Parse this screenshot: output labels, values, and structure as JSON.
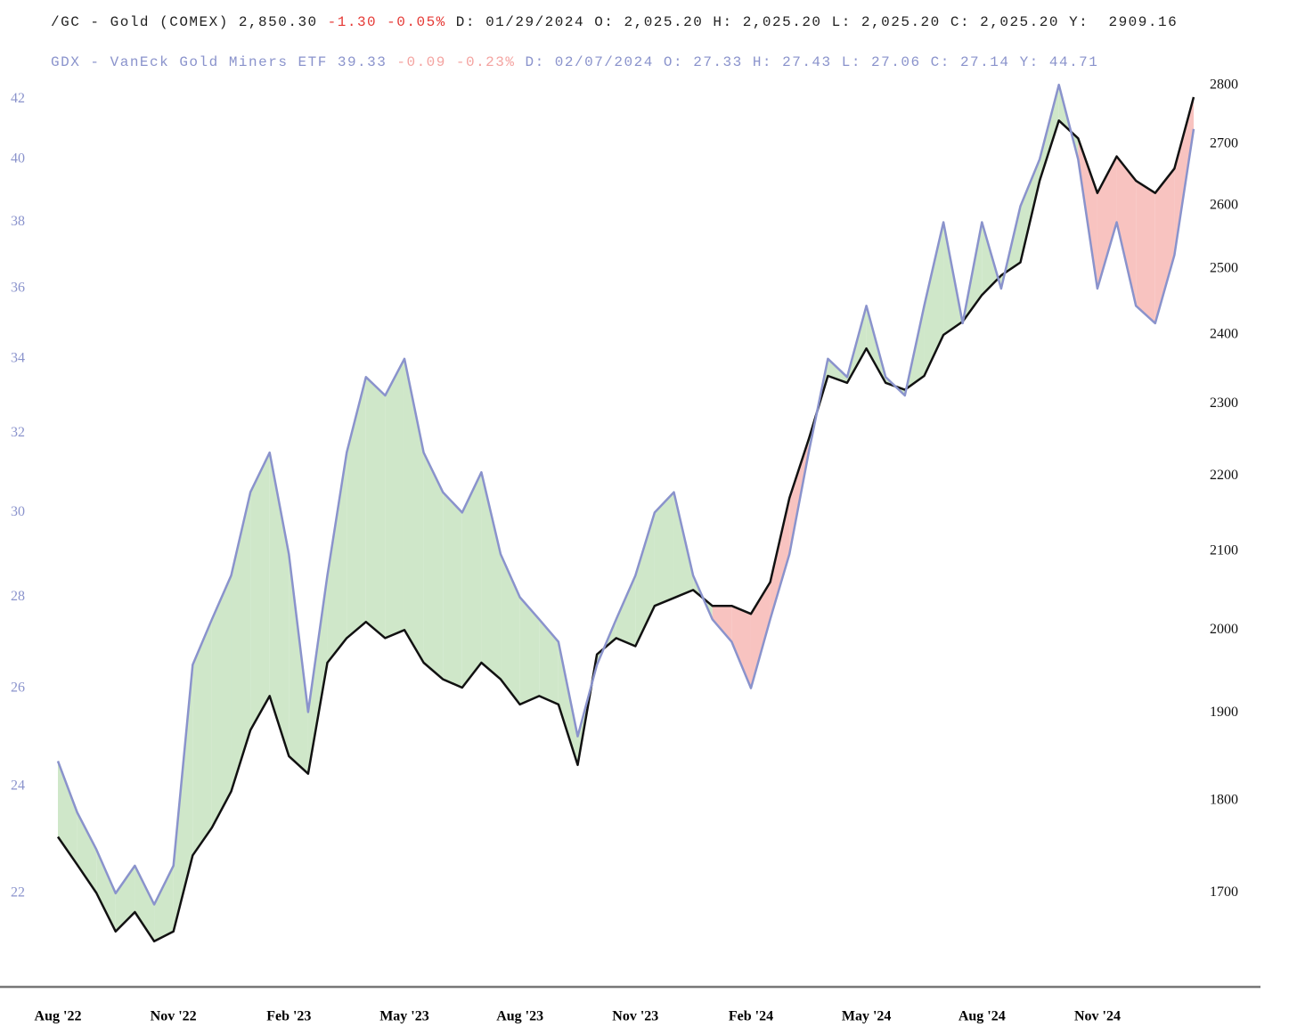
{
  "chart_data": {
    "type": "line",
    "categories": [
      "Aug '22",
      null,
      null,
      null,
      null,
      null,
      "Nov '22",
      null,
      null,
      null,
      null,
      null,
      "Feb '23",
      null,
      null,
      null,
      null,
      null,
      "May '23",
      null,
      null,
      null,
      null,
      null,
      "Aug '23",
      null,
      null,
      null,
      null,
      null,
      "Nov '23",
      null,
      null,
      null,
      null,
      null,
      "Feb '24",
      null,
      null,
      null,
      null,
      null,
      "May '24",
      null,
      null,
      null,
      null,
      null,
      "Aug '24",
      null,
      null,
      null,
      null,
      null,
      "Nov '24",
      null,
      null,
      null,
      null,
      null
    ],
    "series": [
      {
        "name": "/GC - Gold (COMEX)",
        "color": "#111111",
        "axis": "y2",
        "quote": {
          "last": "2,850.30",
          "change": "-1.30",
          "percent": "-0.05%",
          "details": "D: 01/29/2024 O: 2,025.20 H: 2,025.20 L: 2,025.20 C: 2,025.20 Y:  2909.16"
        },
        "values": [
          1760,
          1730,
          1700,
          1660,
          1680,
          1650,
          1660,
          1740,
          1770,
          1810,
          1880,
          1920,
          1850,
          1830,
          1960,
          1990,
          2010,
          1990,
          2000,
          1960,
          1940,
          1930,
          1960,
          1940,
          1910,
          1920,
          1910,
          1840,
          1970,
          1990,
          1980,
          2030,
          2040,
          2050,
          2030,
          2030,
          2020,
          2060,
          2170,
          2250,
          2340,
          2330,
          2380,
          2330,
          2320,
          2340,
          2400,
          2420,
          2460,
          2490,
          2510,
          2640,
          2740,
          2710,
          2620,
          2680,
          2640,
          2620,
          2660,
          2780
        ]
      },
      {
        "name": "GDX - VanEck Gold Miners ETF",
        "color": "#8a93cc",
        "axis": "y",
        "quote": {
          "last": "39.33",
          "change": "-0.09",
          "percent": "-0.23%",
          "details": "D: 02/07/2024 O: 27.33 H: 27.43 L: 27.06 C: 27.14 Y: 44.71"
        },
        "values": [
          24.5,
          23.5,
          22.8,
          22.0,
          22.5,
          21.8,
          22.5,
          26.5,
          27.5,
          28.5,
          30.5,
          31.5,
          29.0,
          25.5,
          28.5,
          31.5,
          33.5,
          33.0,
          34.0,
          31.5,
          30.5,
          30.0,
          31.0,
          29.0,
          28.0,
          27.5,
          27.0,
          25.0,
          26.5,
          27.5,
          28.5,
          30.0,
          30.5,
          28.5,
          27.5,
          27.0,
          26.0,
          27.5,
          29.0,
          31.5,
          34.0,
          33.5,
          35.5,
          33.5,
          33.0,
          35.5,
          38.0,
          35.0,
          38.0,
          36.0,
          38.5,
          40.0,
          42.5,
          40.0,
          36.0,
          38.0,
          35.5,
          35.0,
          37.0,
          41.0
        ]
      }
    ],
    "ylim": [
      20.4,
      43.6
    ],
    "yticks": [
      22,
      24,
      26,
      28,
      30,
      32,
      34,
      36,
      38,
      40,
      42
    ],
    "y2lim": [
      1605,
      2856
    ],
    "y2ticks": [
      1700,
      1800,
      1900,
      2000,
      2100,
      2200,
      2300,
      2400,
      2500,
      2600,
      2700,
      2800
    ],
    "log_scale": true,
    "grid": false,
    "fill_colors": {
      "above": "#cfe7c9",
      "below": "#f8c3c0"
    }
  }
}
